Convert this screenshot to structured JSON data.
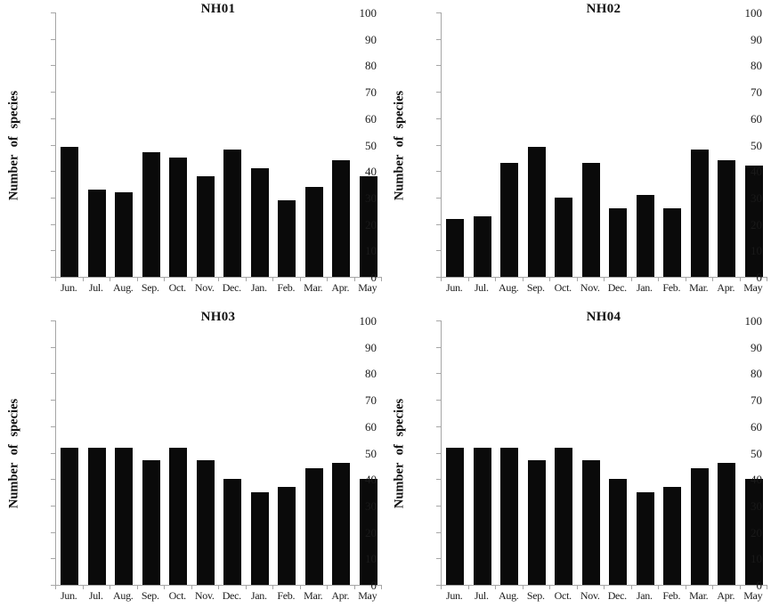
{
  "figure": {
    "background": "#ffffff",
    "bar_color": "#0a0a0a",
    "axis_color": "#a6a6a6",
    "text_color": "#1a1a1a"
  },
  "chart_data": [
    {
      "type": "bar",
      "title": "NH01",
      "ylabel": "Number of species",
      "xlabel": "",
      "ylim": [
        0,
        100
      ],
      "ytick_step": 10,
      "grid": false,
      "legend_position": "none",
      "categories": [
        "Jun.",
        "Jul.",
        "Aug.",
        "Sep.",
        "Oct.",
        "Nov.",
        "Dec.",
        "Jan.",
        "Feb.",
        "Mar.",
        "Apr.",
        "May"
      ],
      "values": [
        49,
        33,
        32,
        47,
        45,
        38,
        48,
        41,
        29,
        34,
        44,
        38
      ]
    },
    {
      "type": "bar",
      "title": "NH02",
      "ylabel": "Number of species",
      "xlabel": "",
      "ylim": [
        0,
        100
      ],
      "ytick_step": 10,
      "grid": false,
      "legend_position": "none",
      "categories": [
        "Jun.",
        "Jul.",
        "Aug.",
        "Sep.",
        "Oct.",
        "Nov.",
        "Dec.",
        "Jan.",
        "Feb.",
        "Mar.",
        "Apr.",
        "May"
      ],
      "values": [
        22,
        23,
        43,
        49,
        30,
        43,
        26,
        31,
        26,
        48,
        44,
        42
      ]
    },
    {
      "type": "bar",
      "title": "NH03",
      "ylabel": "Number of species",
      "xlabel": "",
      "ylim": [
        0,
        100
      ],
      "ytick_step": 10,
      "grid": false,
      "legend_position": "none",
      "categories": [
        "Jun.",
        "Jul.",
        "Aug.",
        "Sep.",
        "Oct.",
        "Nov.",
        "Dec.",
        "Jan.",
        "Feb.",
        "Mar.",
        "Apr.",
        "May"
      ],
      "values": [
        52,
        52,
        52,
        47,
        52,
        47,
        40,
        35,
        37,
        44,
        46,
        40
      ]
    },
    {
      "type": "bar",
      "title": "NH04",
      "ylabel": "Number of species",
      "xlabel": "",
      "ylim": [
        0,
        100
      ],
      "ytick_step": 10,
      "grid": false,
      "legend_position": "none",
      "categories": [
        "Jun.",
        "Jul.",
        "Aug.",
        "Sep.",
        "Oct.",
        "Nov.",
        "Dec.",
        "Jan.",
        "Feb.",
        "Mar.",
        "Apr.",
        "May"
      ],
      "values": [
        52,
        52,
        52,
        47,
        52,
        47,
        40,
        35,
        37,
        44,
        46,
        40
      ]
    }
  ]
}
